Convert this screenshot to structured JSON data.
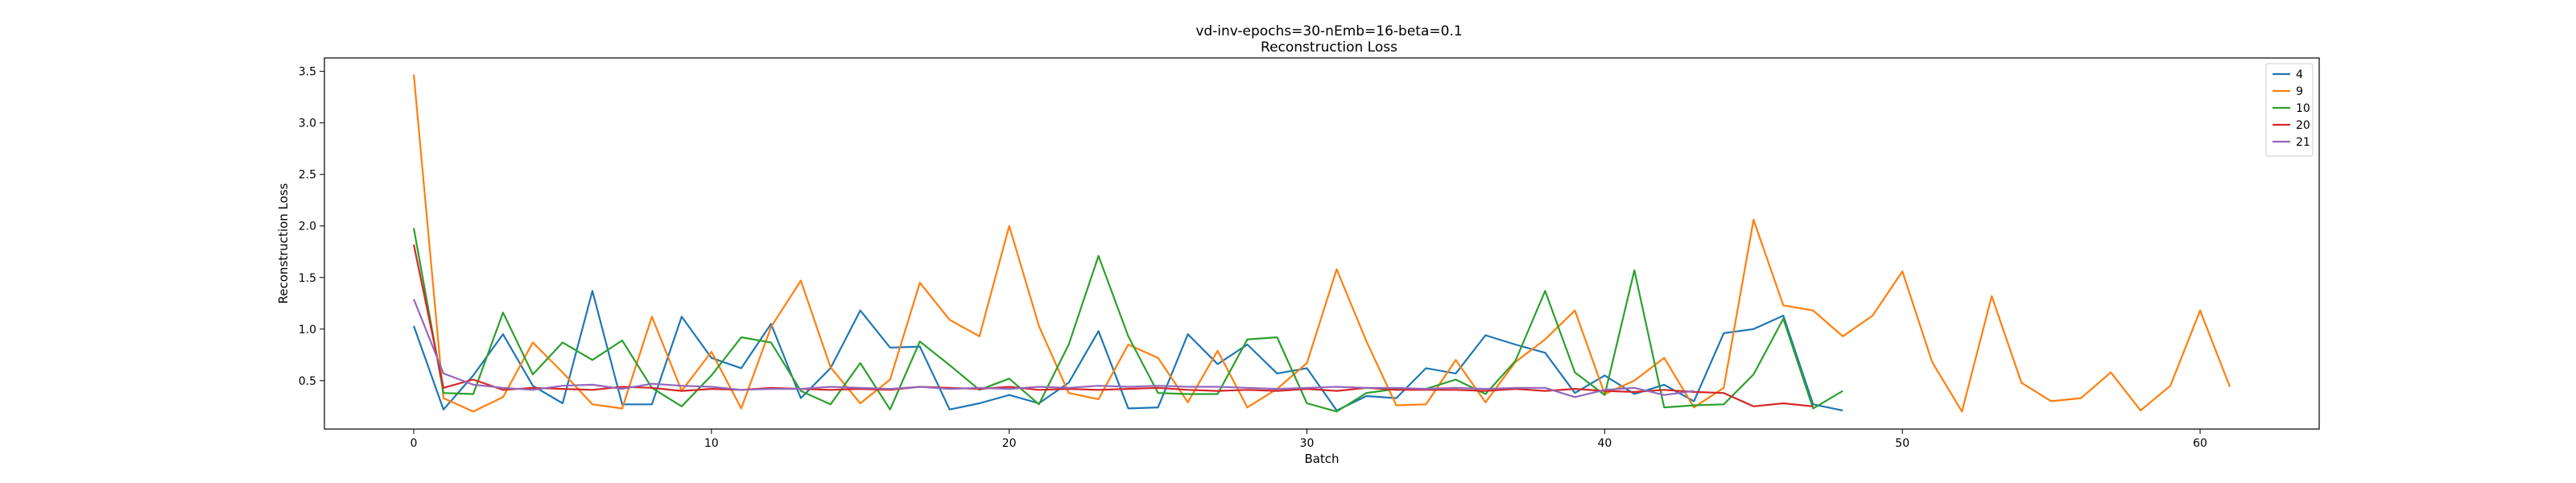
{
  "chart_data": {
    "type": "line",
    "title": "vd-inv-epochs=30-nEmb=16-beta=0.1",
    "subtitle": "Reconstruction Loss",
    "xlabel": "Batch",
    "ylabel": "Reconstruction Loss",
    "xlim": [
      -3,
      64
    ],
    "ylim": [
      0.03,
      3.63
    ],
    "xticks": [
      0,
      10,
      20,
      30,
      40,
      50,
      60
    ],
    "yticks": [
      0.5,
      1.0,
      1.5,
      2.0,
      2.5,
      3.0,
      3.5
    ],
    "ytick_labels": [
      "0.5",
      "1.0",
      "1.5",
      "2.0",
      "2.5",
      "3.0",
      "3.5"
    ],
    "grid": false,
    "legend_position": "top-right",
    "series": [
      {
        "name": "4",
        "color": "#1f77b4",
        "x": [
          0,
          1,
          2,
          3,
          4,
          5,
          6,
          7,
          8,
          9,
          10,
          11,
          12,
          13,
          14,
          15,
          16,
          17,
          18,
          19,
          20,
          21,
          22,
          23,
          24,
          25,
          26,
          27,
          28,
          29,
          30,
          31,
          32,
          33,
          34,
          35,
          36,
          37,
          38,
          39,
          40,
          41,
          42,
          43,
          44,
          45,
          46,
          47,
          48
        ],
        "values": [
          1.03,
          0.22,
          0.55,
          0.95,
          0.45,
          0.28,
          1.37,
          0.27,
          0.27,
          1.12,
          0.72,
          0.62,
          1.05,
          0.33,
          0.62,
          1.18,
          0.82,
          0.83,
          0.22,
          0.28,
          0.36,
          0.28,
          0.48,
          0.98,
          0.23,
          0.24,
          0.95,
          0.66,
          0.85,
          0.57,
          0.62,
          0.21,
          0.35,
          0.33,
          0.62,
          0.57,
          0.94,
          0.85,
          0.77,
          0.38,
          0.55,
          0.37,
          0.46,
          0.3,
          0.96,
          1.0,
          1.13,
          0.27,
          0.21
        ]
      },
      {
        "name": "9",
        "color": "#ff7f0e",
        "x": [
          0,
          1,
          2,
          3,
          4,
          5,
          6,
          7,
          8,
          9,
          10,
          11,
          12,
          13,
          14,
          15,
          16,
          17,
          18,
          19,
          20,
          21,
          22,
          23,
          24,
          25,
          26,
          27,
          28,
          29,
          30,
          31,
          32,
          33,
          34,
          35,
          36,
          37,
          38,
          39,
          40,
          41,
          42,
          43,
          44,
          45,
          46,
          47,
          48,
          49,
          50,
          51,
          52,
          53,
          54,
          55,
          56,
          57,
          58,
          59,
          60,
          61
        ],
        "values": [
          3.47,
          0.33,
          0.2,
          0.34,
          0.87,
          0.58,
          0.27,
          0.23,
          1.12,
          0.4,
          0.78,
          0.23,
          1.02,
          1.47,
          0.63,
          0.28,
          0.51,
          1.45,
          1.09,
          0.93,
          2.0,
          1.03,
          0.38,
          0.32,
          0.85,
          0.72,
          0.29,
          0.79,
          0.24,
          0.42,
          0.67,
          1.58,
          0.88,
          0.26,
          0.27,
          0.7,
          0.29,
          0.68,
          0.9,
          1.18,
          0.37,
          0.5,
          0.72,
          0.24,
          0.43,
          2.06,
          1.23,
          1.18,
          0.93,
          1.13,
          1.56,
          0.68,
          0.2,
          1.32,
          0.48,
          0.3,
          0.33,
          0.58,
          0.21,
          0.45,
          1.18,
          0.44
        ]
      },
      {
        "name": "10",
        "color": "#2ca02c",
        "x": [
          0,
          1,
          2,
          3,
          4,
          5,
          6,
          7,
          8,
          9,
          10,
          11,
          12,
          13,
          14,
          15,
          16,
          17,
          18,
          19,
          20,
          21,
          22,
          23,
          24,
          25,
          26,
          27,
          28,
          29,
          30,
          31,
          32,
          33,
          34,
          35,
          36,
          37,
          38,
          39,
          40,
          41,
          42,
          43,
          44,
          45,
          46,
          47,
          48
        ],
        "values": [
          1.98,
          0.38,
          0.37,
          1.16,
          0.56,
          0.87,
          0.7,
          0.89,
          0.43,
          0.25,
          0.55,
          0.92,
          0.87,
          0.4,
          0.27,
          0.67,
          0.22,
          0.88,
          0.65,
          0.41,
          0.52,
          0.27,
          0.85,
          1.71,
          0.93,
          0.38,
          0.37,
          0.37,
          0.9,
          0.92,
          0.28,
          0.2,
          0.38,
          0.42,
          0.42,
          0.51,
          0.37,
          0.69,
          1.37,
          0.58,
          0.36,
          1.57,
          0.24,
          0.26,
          0.27,
          0.56,
          1.1,
          0.23,
          0.4
        ]
      },
      {
        "name": "20",
        "color": "#d62728",
        "x": [
          0,
          1,
          2,
          3,
          4,
          5,
          6,
          7,
          8,
          9,
          10,
          11,
          12,
          13,
          14,
          15,
          16,
          17,
          18,
          19,
          20,
          21,
          22,
          23,
          24,
          25,
          26,
          27,
          28,
          29,
          30,
          31,
          32,
          33,
          34,
          35,
          36,
          37,
          38,
          39,
          40,
          41,
          42,
          43,
          44,
          45,
          46,
          47
        ],
        "values": [
          1.82,
          0.43,
          0.51,
          0.41,
          0.43,
          0.42,
          0.41,
          0.44,
          0.43,
          0.4,
          0.42,
          0.41,
          0.43,
          0.42,
          0.41,
          0.42,
          0.41,
          0.44,
          0.43,
          0.42,
          0.44,
          0.41,
          0.42,
          0.41,
          0.42,
          0.43,
          0.41,
          0.4,
          0.41,
          0.4,
          0.42,
          0.4,
          0.43,
          0.41,
          0.41,
          0.41,
          0.4,
          0.42,
          0.4,
          0.42,
          0.4,
          0.39,
          0.41,
          0.39,
          0.38,
          0.25,
          0.28,
          0.25
        ]
      },
      {
        "name": "21",
        "color": "#9467bd",
        "x": [
          0,
          1,
          2,
          3,
          4,
          5,
          6,
          7,
          8,
          9,
          10,
          11,
          12,
          13,
          14,
          15,
          16,
          17,
          18,
          19,
          20,
          21,
          22,
          23,
          24,
          25,
          26,
          27,
          28,
          29,
          30,
          31,
          32,
          33,
          34,
          35,
          36,
          37,
          38,
          39,
          40,
          41,
          42,
          43
        ],
        "values": [
          1.29,
          0.57,
          0.46,
          0.43,
          0.41,
          0.45,
          0.46,
          0.42,
          0.47,
          0.45,
          0.44,
          0.41,
          0.42,
          0.42,
          0.44,
          0.43,
          0.42,
          0.44,
          0.42,
          0.43,
          0.42,
          0.44,
          0.43,
          0.45,
          0.44,
          0.45,
          0.44,
          0.44,
          0.43,
          0.42,
          0.43,
          0.44,
          0.43,
          0.43,
          0.42,
          0.43,
          0.42,
          0.43,
          0.43,
          0.34,
          0.41,
          0.43,
          0.36,
          0.4
        ]
      }
    ]
  }
}
